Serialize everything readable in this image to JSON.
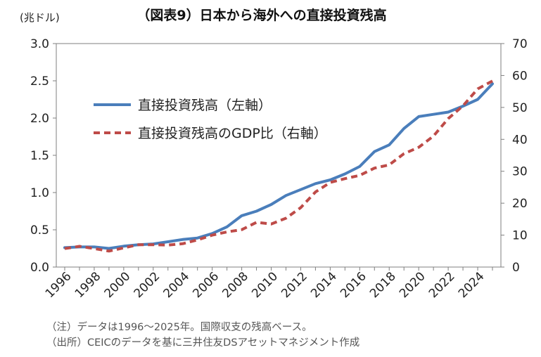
{
  "header": {
    "title": "（図表9）日本から海外への直接投資残高",
    "left_unit": "(兆ドル)"
  },
  "notes": {
    "note1": "（注）データは1996～2025年。国際収支の残高ベース。",
    "note2": "（出所）CEICのデータを基に三井住友DSアセットマネジメント作成"
  },
  "colors": {
    "series1": "#4a7ebb",
    "series2": "#be4b48",
    "axis": "#7f7f7f"
  },
  "chart_data": {
    "type": "line",
    "title": "（図表9）日本から海外への直接投資残高",
    "x": [
      1996,
      1997,
      1998,
      1999,
      2000,
      2001,
      2002,
      2003,
      2004,
      2005,
      2006,
      2007,
      2008,
      2009,
      2010,
      2011,
      2012,
      2013,
      2014,
      2015,
      2016,
      2017,
      2018,
      2019,
      2020,
      2021,
      2022,
      2023,
      2024,
      2025
    ],
    "x_tick_labels": [
      "1996",
      "1998",
      "2000",
      "2002",
      "2004",
      "2006",
      "2008",
      "2010",
      "2012",
      "2014",
      "2016",
      "2018",
      "2020",
      "2022",
      "2024"
    ],
    "y_left": {
      "label": "(兆ドル)",
      "lim": [
        0,
        3.0
      ],
      "ticks": [
        "0.0",
        "0.5",
        "1.0",
        "1.5",
        "2.0",
        "2.5",
        "3.0"
      ]
    },
    "y_right": {
      "label": "",
      "lim": [
        0,
        70
      ],
      "ticks": [
        "0",
        "10",
        "20",
        "30",
        "40",
        "50",
        "60",
        "70"
      ]
    },
    "series": [
      {
        "name": "直接投資残高（左軸）",
        "axis": "left",
        "style": "solid",
        "values": [
          0.26,
          0.27,
          0.27,
          0.25,
          0.28,
          0.3,
          0.31,
          0.34,
          0.37,
          0.39,
          0.45,
          0.54,
          0.69,
          0.75,
          0.84,
          0.96,
          1.04,
          1.12,
          1.17,
          1.25,
          1.35,
          1.55,
          1.64,
          1.86,
          2.02,
          2.05,
          2.08,
          2.16,
          2.25,
          2.46
        ]
      },
      {
        "name": "直接投資残高のGDP比（右軸）",
        "axis": "right",
        "style": "dashed",
        "values": [
          5.8,
          6.5,
          5.8,
          5.0,
          6.0,
          7.0,
          7.0,
          6.9,
          7.3,
          8.5,
          10.0,
          11.0,
          11.7,
          14.0,
          13.5,
          15.3,
          18.6,
          23.5,
          26.5,
          27.7,
          28.7,
          31.0,
          32.0,
          35.5,
          37.5,
          41.0,
          46.5,
          50.5,
          55.8,
          58.3
        ]
      }
    ],
    "legend": "inside-top-left",
    "grid": false
  }
}
